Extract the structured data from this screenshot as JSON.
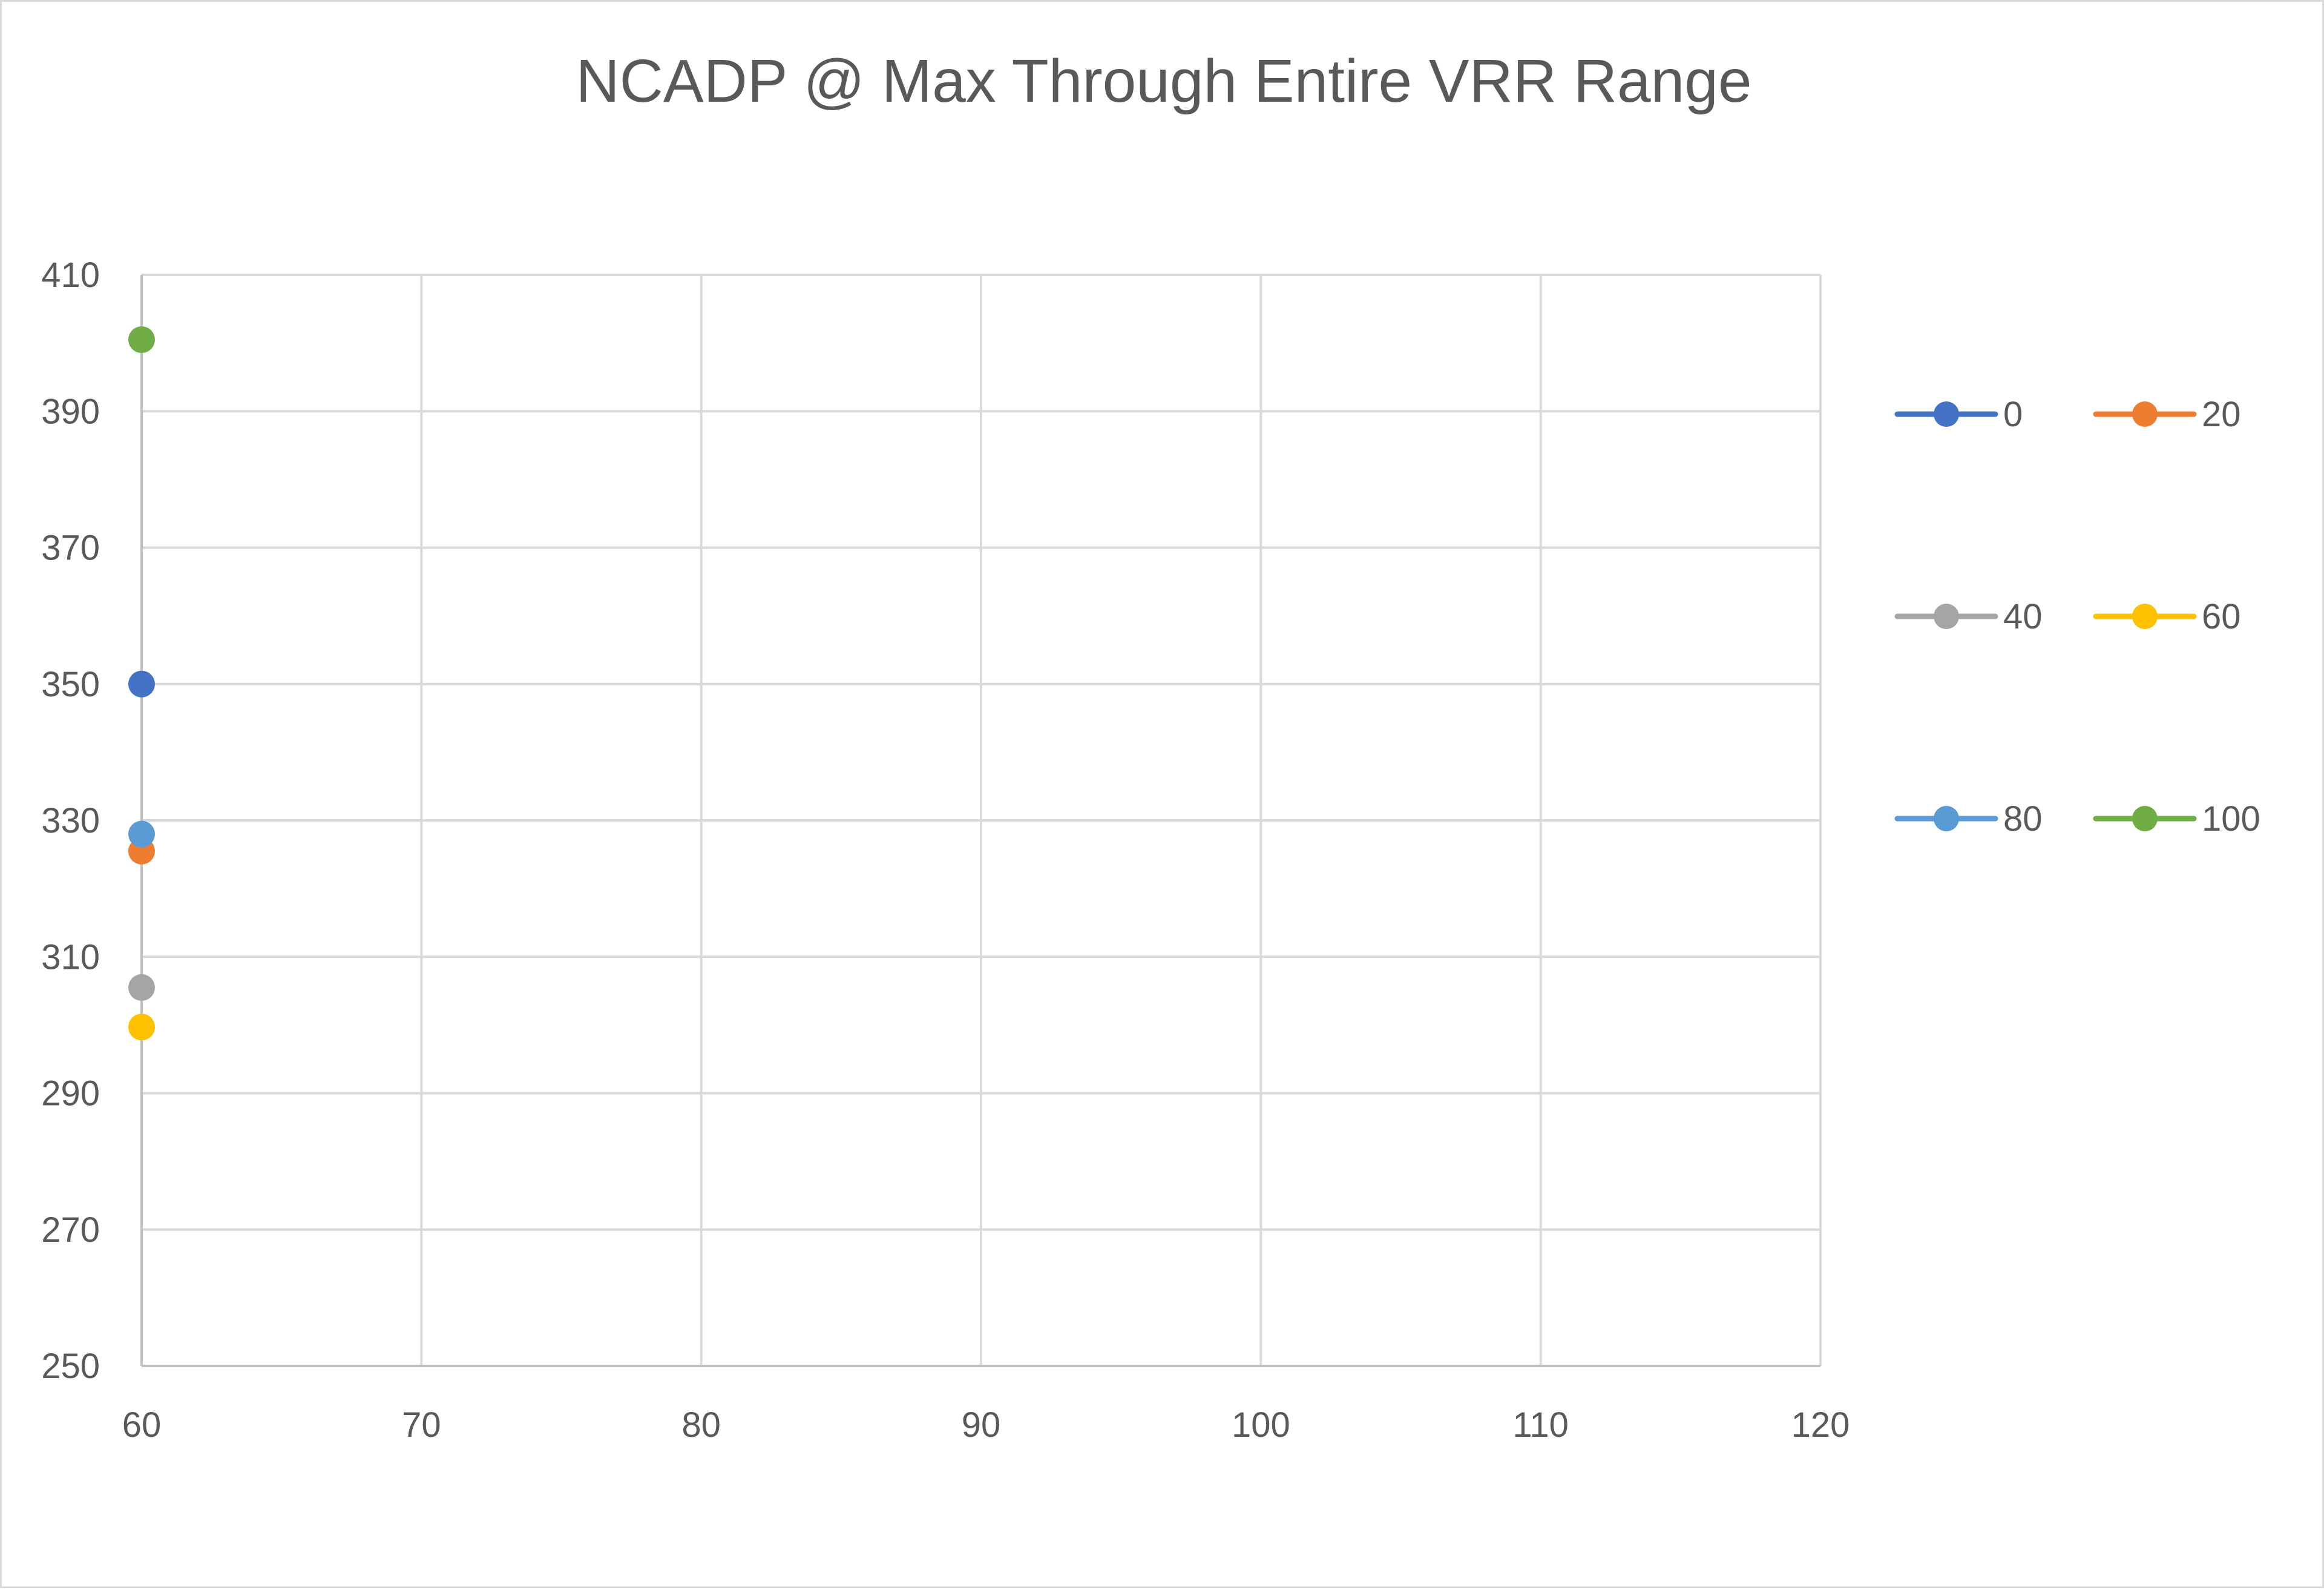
{
  "chart_data": {
    "type": "scatter",
    "title": "NCADP @ Max Through Entire VRR Range",
    "xlabel": "",
    "ylabel": "",
    "xlim": [
      60,
      120
    ],
    "ylim": [
      250,
      410
    ],
    "x_ticks": [
      60,
      70,
      80,
      90,
      100,
      110,
      120
    ],
    "y_ticks": [
      250,
      270,
      290,
      310,
      330,
      350,
      370,
      390,
      410
    ],
    "grid": true,
    "legend_position": "right",
    "series": [
      {
        "name": "0",
        "color": "#4472C4",
        "points": [
          {
            "x": 60,
            "y": 350
          }
        ]
      },
      {
        "name": "20",
        "color": "#ED7D31",
        "points": [
          {
            "x": 60,
            "y": 325.5
          }
        ]
      },
      {
        "name": "40",
        "color": "#A5A5A5",
        "points": [
          {
            "x": 60,
            "y": 305.5
          }
        ]
      },
      {
        "name": "60",
        "color": "#FFC000",
        "points": [
          {
            "x": 60,
            "y": 299.7
          }
        ]
      },
      {
        "name": "80",
        "color": "#5B9BD5",
        "points": [
          {
            "x": 60,
            "y": 328
          }
        ]
      },
      {
        "name": "100",
        "color": "#70AD47",
        "points": [
          {
            "x": 60,
            "y": 400.5
          }
        ]
      }
    ]
  }
}
